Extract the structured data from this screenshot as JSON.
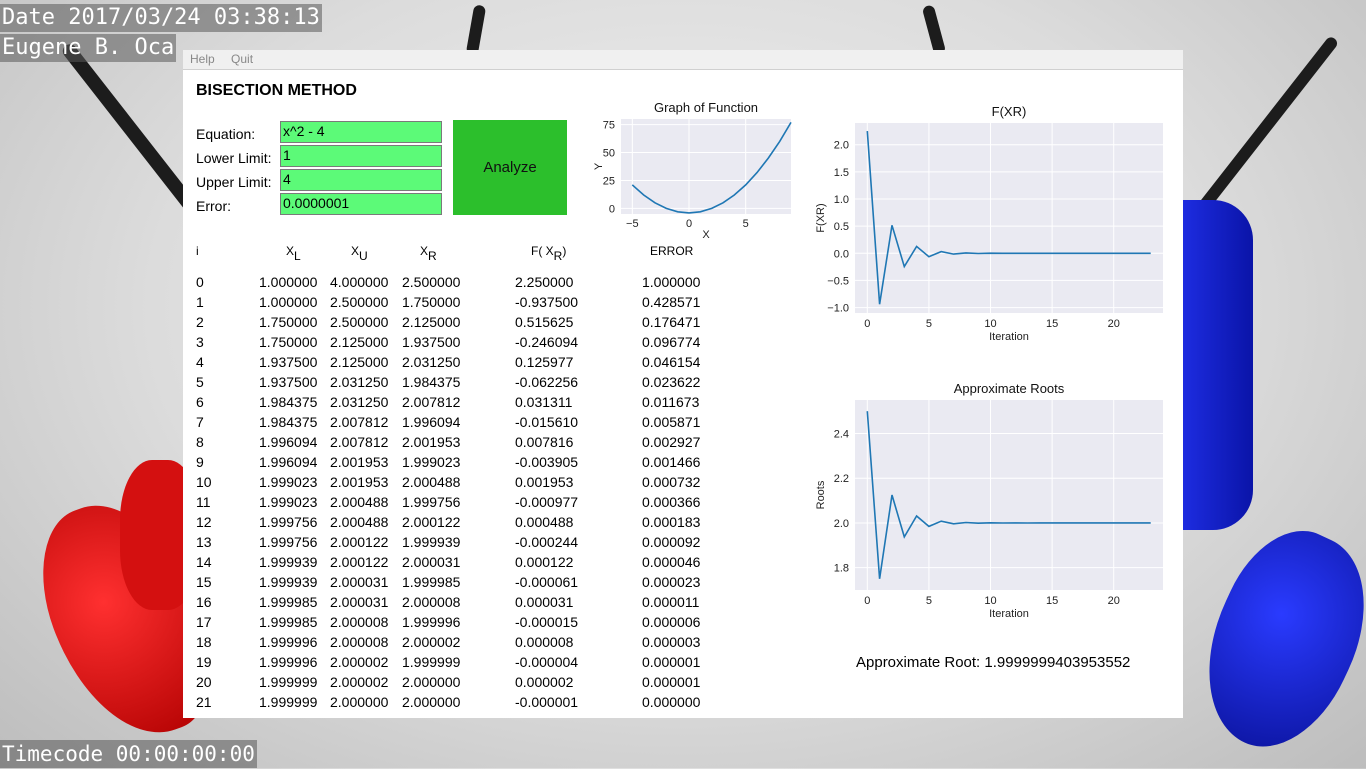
{
  "overlay": {
    "date": "Date 2017/03/24 03:38:13",
    "author": "Eugene B. Oca",
    "timecode": "Timecode 00:00:00:00"
  },
  "menu": {
    "help": "Help",
    "quit": "Quit"
  },
  "app": {
    "title": "BISECTION METHOD",
    "analyze_label": "Analyze"
  },
  "form": {
    "equation_label": "Equation:",
    "lower_label": "Lower Limit:",
    "upper_label": "Upper Limit:",
    "error_label": "Error:",
    "equation_value": "x^2 - 4",
    "lower_value": "1",
    "upper_value": "4",
    "error_value": "0.0000001"
  },
  "table": {
    "headers": {
      "i": "i",
      "xl": "X",
      "xl_sub": "L",
      "xu": "X",
      "xu_sub": "U",
      "xr": "X",
      "xr_sub": "R",
      "fxr_pre": "F( X",
      "fxr_sub": "R",
      "fxr_post": ")",
      "error": "ERROR"
    },
    "rows": [
      [
        "0",
        "1.000000",
        "4.000000",
        "2.500000",
        "2.250000",
        "1.000000"
      ],
      [
        "1",
        "1.000000",
        "2.500000",
        "1.750000",
        "-0.937500",
        "0.428571"
      ],
      [
        "2",
        "1.750000",
        "2.500000",
        "2.125000",
        "0.515625",
        "0.176471"
      ],
      [
        "3",
        "1.750000",
        "2.125000",
        "1.937500",
        "-0.246094",
        "0.096774"
      ],
      [
        "4",
        "1.937500",
        "2.125000",
        "2.031250",
        "0.125977",
        "0.046154"
      ],
      [
        "5",
        "1.937500",
        "2.031250",
        "1.984375",
        "-0.062256",
        "0.023622"
      ],
      [
        "6",
        "1.984375",
        "2.031250",
        "2.007812",
        "0.031311",
        "0.011673"
      ],
      [
        "7",
        "1.984375",
        "2.007812",
        "1.996094",
        "-0.015610",
        "0.005871"
      ],
      [
        "8",
        "1.996094",
        "2.007812",
        "2.001953",
        "0.007816",
        "0.002927"
      ],
      [
        "9",
        "1.996094",
        "2.001953",
        "1.999023",
        "-0.003905",
        "0.001466"
      ],
      [
        "10",
        "1.999023",
        "2.001953",
        "2.000488",
        "0.001953",
        "0.000732"
      ],
      [
        "11",
        "1.999023",
        "2.000488",
        "1.999756",
        "-0.000977",
        "0.000366"
      ],
      [
        "12",
        "1.999756",
        "2.000488",
        "2.000122",
        "0.000488",
        "0.000183"
      ],
      [
        "13",
        "1.999756",
        "2.000122",
        "1.999939",
        "-0.000244",
        "0.000092"
      ],
      [
        "14",
        "1.999939",
        "2.000122",
        "2.000031",
        "0.000122",
        "0.000046"
      ],
      [
        "15",
        "1.999939",
        "2.000031",
        "1.999985",
        "-0.000061",
        "0.000023"
      ],
      [
        "16",
        "1.999985",
        "2.000031",
        "2.000008",
        "0.000031",
        "0.000011"
      ],
      [
        "17",
        "1.999985",
        "2.000008",
        "1.999996",
        "-0.000015",
        "0.000006"
      ],
      [
        "18",
        "1.999996",
        "2.000008",
        "2.000002",
        "0.000008",
        "0.000003"
      ],
      [
        "19",
        "1.999996",
        "2.000002",
        "1.999999",
        "-0.000004",
        "0.000001"
      ],
      [
        "20",
        "1.999999",
        "2.000002",
        "2.000000",
        "0.000002",
        "0.000001"
      ],
      [
        "21",
        "1.999999",
        "2.000000",
        "2.000000",
        "-0.000001",
        "0.000000"
      ]
    ]
  },
  "result": {
    "label": "Approximate Root:",
    "value": "1.9999999403953552"
  },
  "colors": {
    "input_bg": "#5cfa78",
    "button_bg": "#2cbf2c",
    "line": "#1f77b4",
    "plot_bg": "#eaeaf2"
  },
  "chart_data": [
    {
      "type": "line",
      "title": "Graph of Function",
      "xlabel": "X",
      "ylabel": "Y",
      "xlim": [
        -6,
        9
      ],
      "ylim": [
        -5,
        80
      ],
      "xticks": [
        -5,
        0,
        5
      ],
      "yticks": [
        0,
        25,
        50,
        75
      ],
      "x": [
        -5,
        -4,
        -3,
        -2,
        -1,
        0,
        1,
        2,
        3,
        4,
        5,
        6,
        7,
        8,
        9
      ],
      "values": [
        21,
        12,
        5,
        0,
        -3,
        -4,
        -3,
        0,
        5,
        12,
        21,
        32,
        45,
        60,
        77
      ]
    },
    {
      "type": "line",
      "title": "F(XR)",
      "xlabel": "Iteration",
      "ylabel": "F(XR)",
      "xlim": [
        -1,
        24
      ],
      "ylim": [
        -1.1,
        2.4
      ],
      "xticks": [
        0,
        5,
        10,
        15,
        20
      ],
      "yticks": [
        -1.0,
        -0.5,
        0.0,
        0.5,
        1.0,
        1.5,
        2.0
      ],
      "x": [
        0,
        1,
        2,
        3,
        4,
        5,
        6,
        7,
        8,
        9,
        10,
        11,
        12,
        13,
        14,
        15,
        16,
        17,
        18,
        19,
        20,
        21,
        22,
        23
      ],
      "values": [
        2.25,
        -0.9375,
        0.515625,
        -0.246094,
        0.125977,
        -0.062256,
        0.031311,
        -0.01561,
        0.007816,
        -0.003905,
        0.001953,
        -0.000977,
        0.000488,
        -0.000244,
        0.000122,
        -6.1e-05,
        3.1e-05,
        -1.5e-05,
        8e-06,
        -4e-06,
        2e-06,
        -1e-06,
        0.0,
        0.0
      ]
    },
    {
      "type": "line",
      "title": "Approximate Roots",
      "xlabel": "Iteration",
      "ylabel": "Roots",
      "xlim": [
        -1,
        24
      ],
      "ylim": [
        1.7,
        2.55
      ],
      "xticks": [
        0,
        5,
        10,
        15,
        20
      ],
      "yticks": [
        "1.8",
        "2.0",
        "2.2",
        "2.4"
      ],
      "x": [
        0,
        1,
        2,
        3,
        4,
        5,
        6,
        7,
        8,
        9,
        10,
        11,
        12,
        13,
        14,
        15,
        16,
        17,
        18,
        19,
        20,
        21,
        22,
        23
      ],
      "values": [
        2.5,
        1.75,
        2.125,
        1.9375,
        2.03125,
        1.984375,
        2.007812,
        1.996094,
        2.001953,
        1.999023,
        2.000488,
        1.999756,
        2.000122,
        1.999939,
        2.000031,
        1.999985,
        2.000008,
        1.999996,
        2.000002,
        1.999999,
        2.0,
        2.0,
        2.0,
        2.0
      ]
    }
  ]
}
